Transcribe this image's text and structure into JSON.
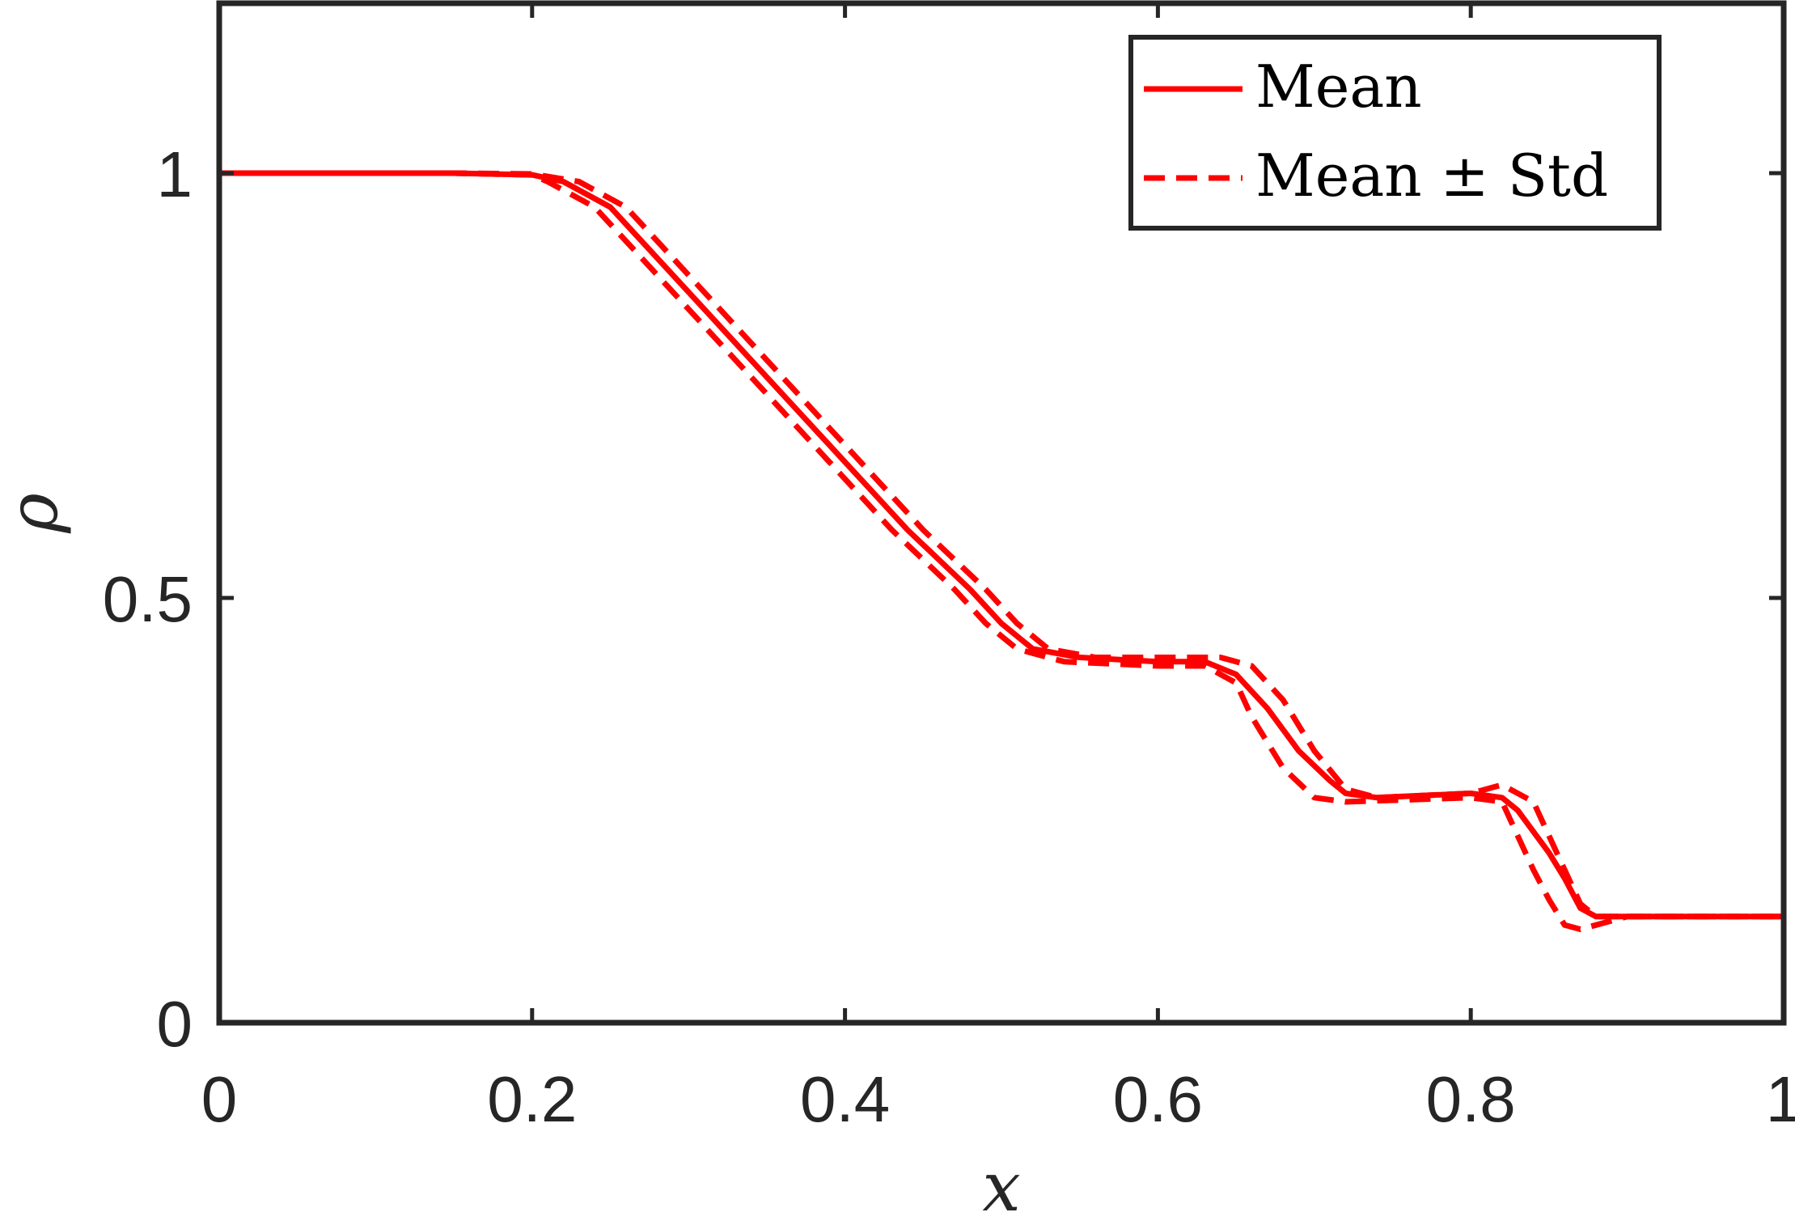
{
  "chart_data": {
    "type": "line",
    "xlabel": "x",
    "ylabel": "ρ",
    "xlim": [
      0,
      1
    ],
    "ylim": [
      0,
      1.2
    ],
    "xticks": [
      0,
      0.2,
      0.4,
      0.6,
      0.8,
      1
    ],
    "xtick_labels": [
      "0",
      "0.2",
      "0.4",
      "0.6",
      "0.8",
      "1"
    ],
    "yticks": [
      0,
      0.5,
      1
    ],
    "ytick_labels": [
      "0",
      "0.5",
      "1"
    ],
    "grid": false,
    "legend_position": "top-right",
    "color": "#ff0000",
    "series": [
      {
        "name": "Mean",
        "style": "solid",
        "x": [
          0,
          0.15,
          0.2,
          0.22,
          0.25,
          0.28,
          0.32,
          0.36,
          0.4,
          0.44,
          0.48,
          0.5,
          0.52,
          0.55,
          0.6,
          0.63,
          0.65,
          0.67,
          0.69,
          0.71,
          0.72,
          0.74,
          0.8,
          0.82,
          0.83,
          0.85,
          0.86,
          0.87,
          0.88,
          0.9,
          1.0
        ],
        "y": [
          1.0,
          1.0,
          0.998,
          0.99,
          0.96,
          0.9,
          0.82,
          0.74,
          0.66,
          0.58,
          0.51,
          0.47,
          0.44,
          0.43,
          0.425,
          0.425,
          0.41,
          0.37,
          0.32,
          0.285,
          0.27,
          0.265,
          0.27,
          0.265,
          0.25,
          0.2,
          0.17,
          0.135,
          0.125,
          0.125,
          0.125
        ]
      },
      {
        "name": "Mean ± Std",
        "style": "dashed",
        "x": [
          0,
          0.15,
          0.2,
          0.23,
          0.26,
          0.29,
          0.33,
          0.37,
          0.41,
          0.45,
          0.49,
          0.51,
          0.53,
          0.56,
          0.6,
          0.64,
          0.66,
          0.68,
          0.7,
          0.72,
          0.74,
          0.8,
          0.82,
          0.84,
          0.85,
          0.86,
          0.87,
          0.88,
          0.9,
          1.0
        ],
        "y": [
          1.0,
          1.0,
          0.999,
          0.99,
          0.96,
          0.9,
          0.82,
          0.74,
          0.66,
          0.58,
          0.51,
          0.47,
          0.44,
          0.43,
          0.43,
          0.43,
          0.42,
          0.38,
          0.32,
          0.275,
          0.265,
          0.27,
          0.28,
          0.26,
          0.22,
          0.18,
          0.14,
          0.125,
          0.125,
          0.125
        ]
      },
      {
        "name": "",
        "style": "dashed",
        "x": [
          0,
          0.15,
          0.2,
          0.21,
          0.24,
          0.27,
          0.31,
          0.35,
          0.39,
          0.43,
          0.47,
          0.49,
          0.51,
          0.54,
          0.6,
          0.63,
          0.65,
          0.66,
          0.68,
          0.7,
          0.72,
          0.8,
          0.82,
          0.83,
          0.84,
          0.85,
          0.86,
          0.87,
          0.9,
          1.0
        ],
        "y": [
          1.0,
          1.0,
          0.998,
          0.99,
          0.96,
          0.9,
          0.82,
          0.74,
          0.66,
          0.58,
          0.51,
          0.47,
          0.44,
          0.425,
          0.42,
          0.42,
          0.4,
          0.36,
          0.3,
          0.265,
          0.26,
          0.265,
          0.26,
          0.22,
          0.18,
          0.145,
          0.115,
          0.11,
          0.125,
          0.125
        ]
      }
    ]
  }
}
